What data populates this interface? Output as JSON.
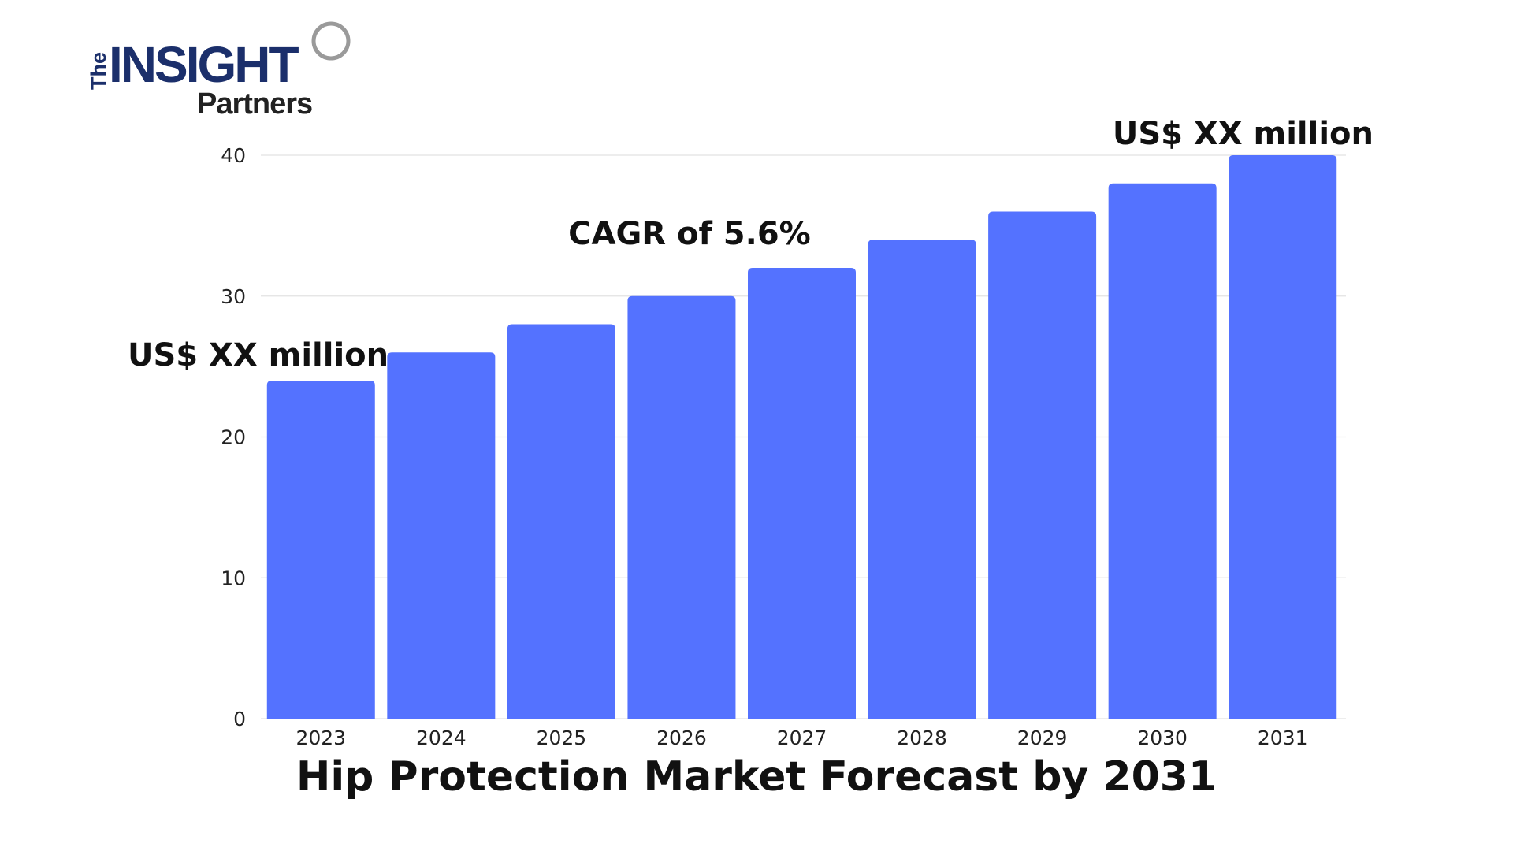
{
  "logo": {
    "the": "The",
    "insight": "INSIGHT",
    "partners": "Partners"
  },
  "colors": {
    "bar": "#5472ff",
    "gridline": "#e2e2e2",
    "logo_navy": "#1b2f6b",
    "logo_ink": "#222222"
  },
  "chart_data": {
    "type": "bar",
    "title": "Hip Protection Market Forecast by 2031",
    "categories": [
      "2023",
      "2024",
      "2025",
      "2026",
      "2027",
      "2028",
      "2029",
      "2030",
      "2031"
    ],
    "values": [
      24,
      26,
      28,
      30,
      32,
      34,
      36,
      38,
      40
    ],
    "ylim": [
      0,
      40
    ],
    "yticks": [
      0,
      10,
      20,
      30,
      40
    ],
    "grid": true,
    "legend": "none",
    "annotations": [
      {
        "text": "US$ XX million",
        "anchor_category": "2023"
      },
      {
        "text": "CAGR of 5.6%",
        "anchor_category": "2026"
      },
      {
        "text": "US$ XX million",
        "anchor_category": "2031"
      }
    ]
  }
}
